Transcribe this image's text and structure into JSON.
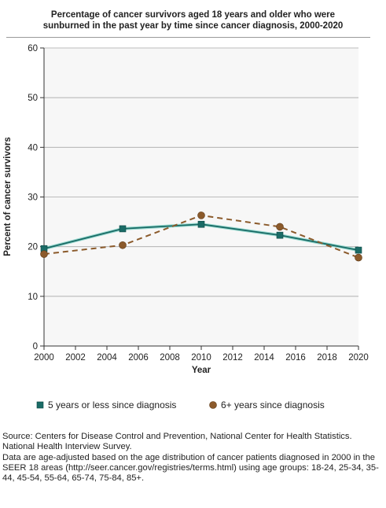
{
  "title_line1": "Percentage of cancer survivors aged 18 years and older who were",
  "title_line2": "sunburned in the past year by time since cancer diagnosis, 2000-2020",
  "source_line1": "Source: Centers for Disease Control and Prevention, National Center for Health Statistics. National Health Interview Survey.",
  "source_line2": "Data are age-adjusted based on the age distribution of cancer patients diagnosed in 2000 in the SEER 18 areas (http://seer.cancer.gov/registries/terms.html) using age groups: 18-24, 25-34, 35-44, 45-54, 55-64, 65-74, 75-84, 85+.",
  "chart_data": {
    "type": "line",
    "title": "Percentage of cancer survivors aged 18 years and older who were sunburned in the past year by time since cancer diagnosis, 2000-2020",
    "xlabel": "Year",
    "ylabel": "Percent of cancer survivors",
    "xlim": [
      2000,
      2020
    ],
    "ylim": [
      0,
      60
    ],
    "xticks": [
      2000,
      2002,
      2004,
      2006,
      2008,
      2010,
      2012,
      2014,
      2016,
      2018,
      2020
    ],
    "yticks": [
      0,
      10,
      20,
      30,
      40,
      50,
      60
    ],
    "grid": "horizontal",
    "legend_position": "bottom",
    "series": [
      {
        "name": "5 years or less since diagnosis",
        "color": "#1a6b66",
        "line_style": "solid",
        "marker": "square",
        "x": [
          2000,
          2005,
          2010,
          2015,
          2020
        ],
        "y": [
          19.6,
          23.6,
          24.5,
          22.3,
          19.3
        ]
      },
      {
        "name": "6+ years since diagnosis",
        "color": "#8b5a2b",
        "line_style": "dashed",
        "marker": "circle",
        "x": [
          2000,
          2005,
          2010,
          2015,
          2020
        ],
        "y": [
          18.5,
          20.3,
          26.3,
          24.0,
          17.8
        ]
      }
    ]
  }
}
